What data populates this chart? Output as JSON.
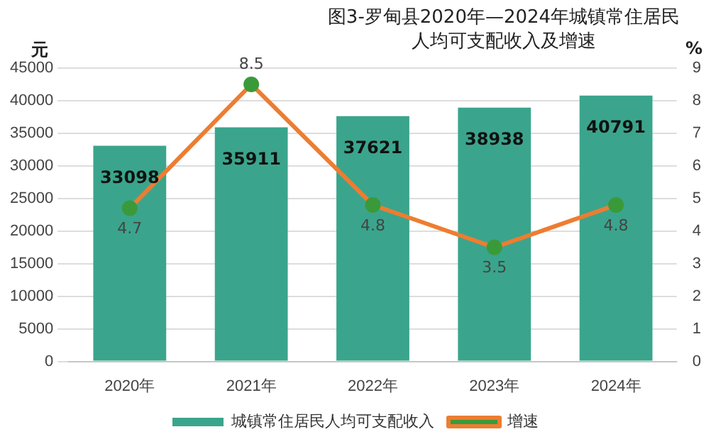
{
  "chart_data": {
    "type": "bar",
    "title": "图3-罗甸县2020年—2024年城镇常住居民人均可支配收入及增速",
    "ylabel": "元",
    "y2label": "%",
    "categories": [
      "2020年",
      "2021年",
      "2022年",
      "2023年",
      "2024年"
    ],
    "series": [
      {
        "name": "城镇常住居民人均可支配收入",
        "color": "#3aa58c",
        "values": [
          33098,
          35911,
          37621,
          38938,
          40791
        ]
      },
      {
        "name": "增速",
        "type": "line",
        "axis": "y2",
        "color": "#ed7d31",
        "marker": "circle",
        "values": [
          4.7,
          8.5,
          4.8,
          3.5,
          4.8
        ]
      }
    ],
    "ylim": [
      0,
      45000
    ],
    "yticks": [
      0,
      5000,
      10000,
      15000,
      20000,
      25000,
      30000,
      35000,
      40000,
      45000
    ],
    "y2lim": [
      0,
      9
    ],
    "y2ticks": [
      0,
      1,
      2,
      3,
      4,
      5,
      6,
      7,
      8,
      9
    ],
    "grid": "y",
    "legend": "bottom",
    "data_labels": true
  }
}
